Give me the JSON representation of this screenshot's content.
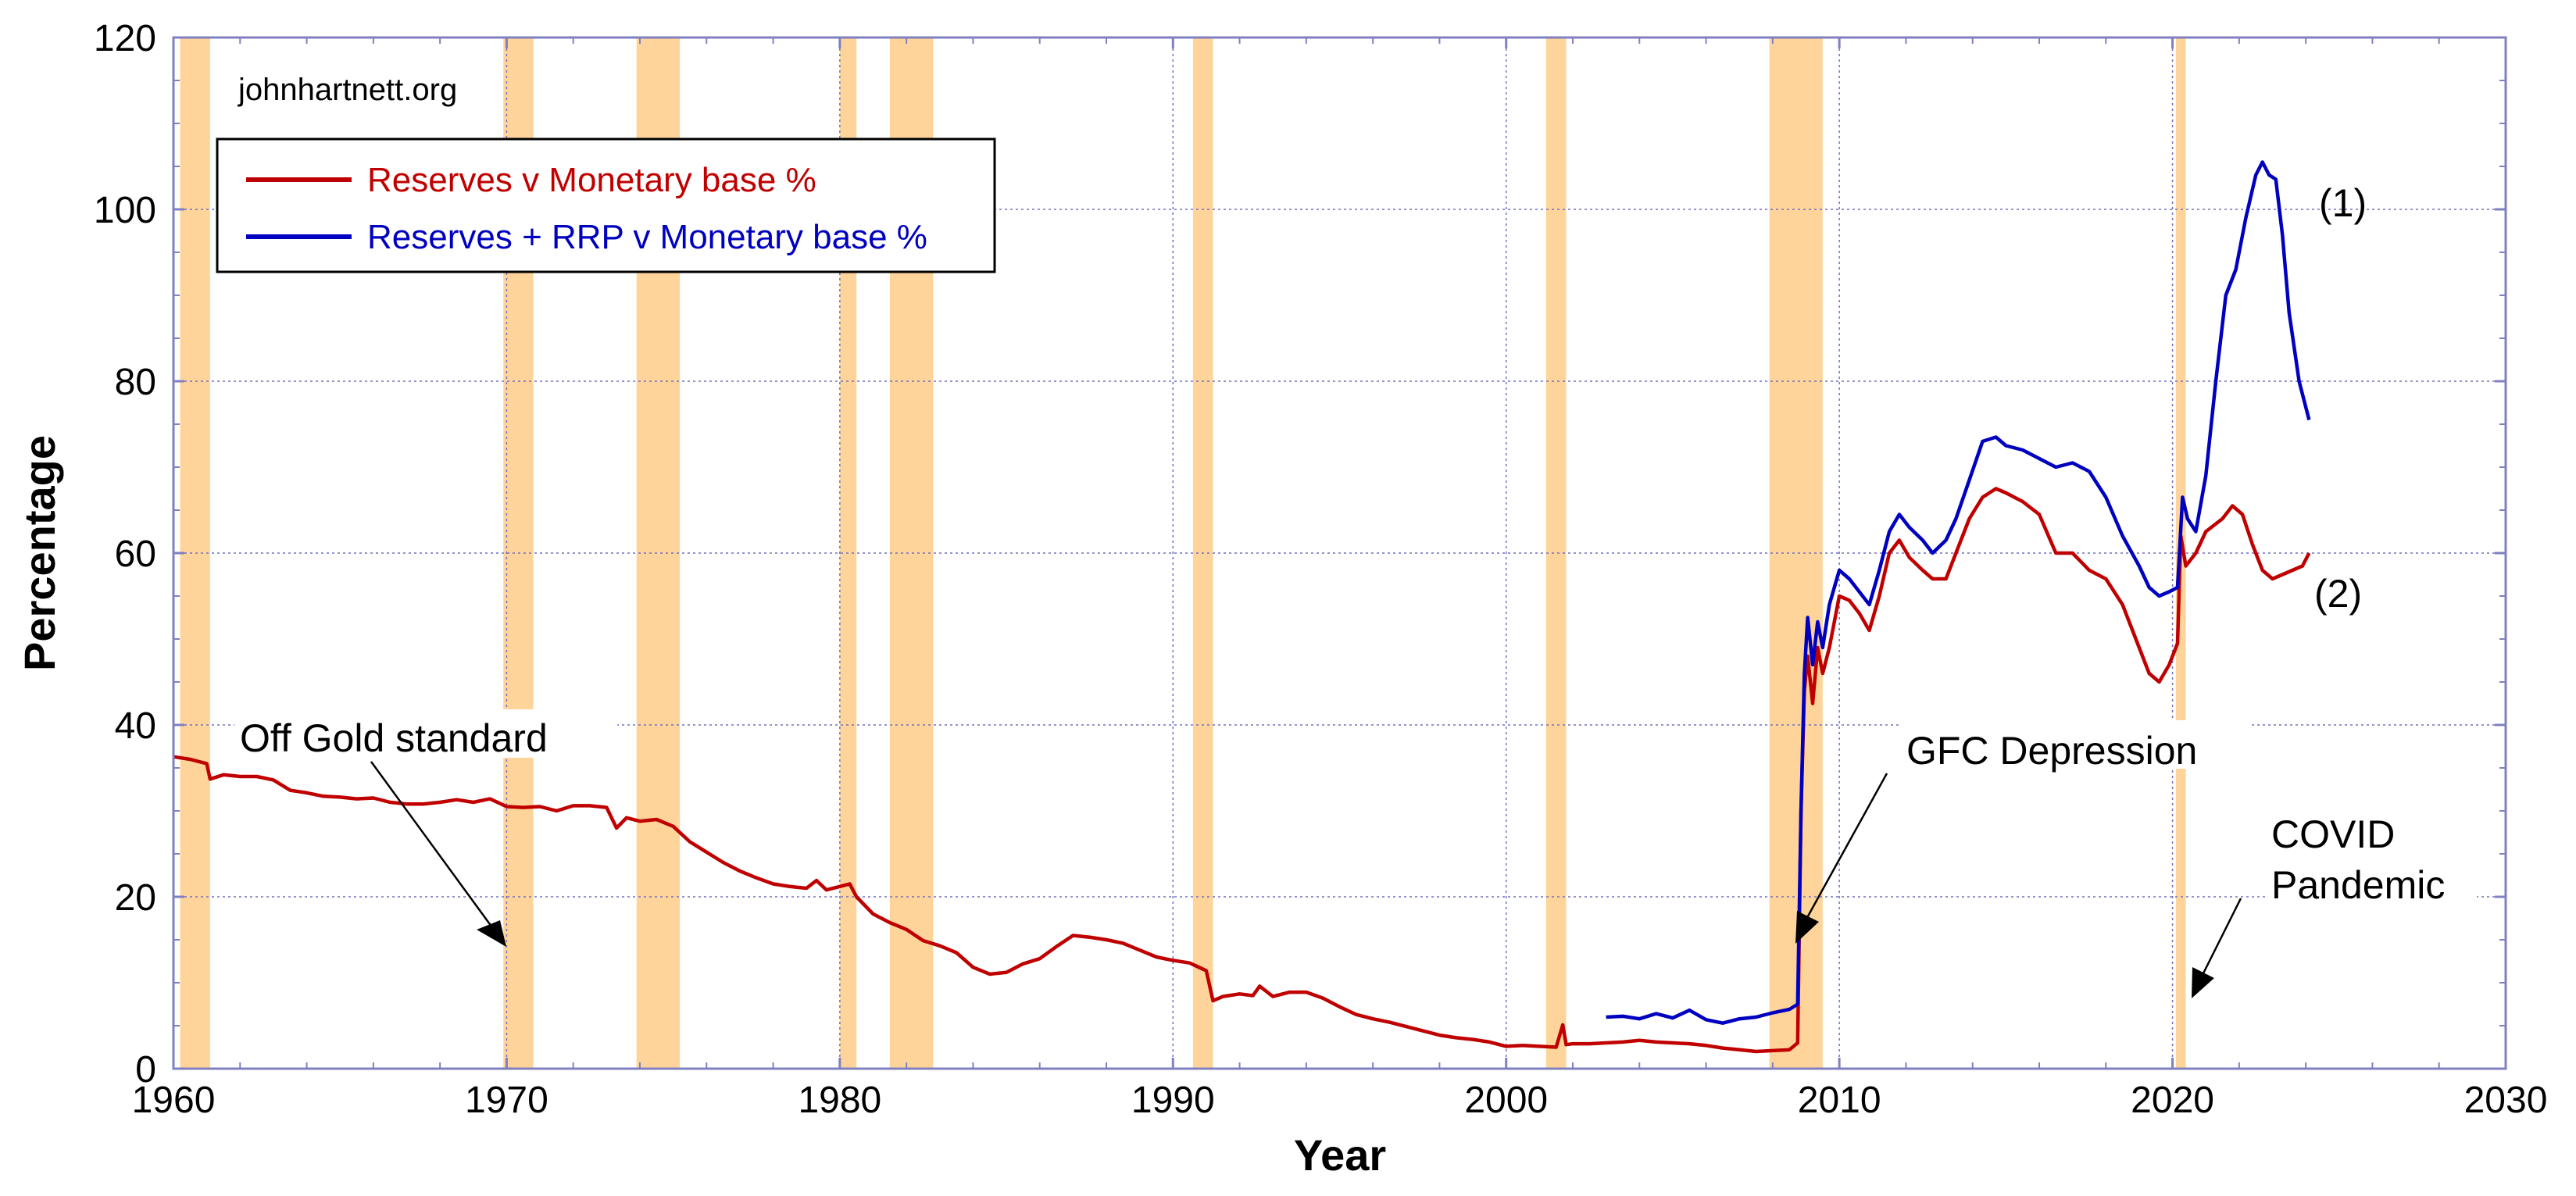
{
  "chart_data": {
    "type": "line",
    "xlabel": "Year",
    "ylabel": "Percentage",
    "xlim": [
      1960,
      2030
    ],
    "ylim": [
      0,
      120
    ],
    "xticks": [
      1960,
      1970,
      1980,
      1990,
      2000,
      2010,
      2020,
      2030
    ],
    "yticks": [
      0,
      20,
      40,
      60,
      80,
      100,
      120
    ],
    "grid": true,
    "legend_placement": "top-left",
    "watermark": "johnhartnett.org",
    "recession_color": "#FFD49A",
    "recessions": [
      [
        1960.2,
        1961.1
      ],
      [
        1969.9,
        1970.8
      ],
      [
        1973.9,
        1975.2
      ],
      [
        1980.0,
        1980.5
      ],
      [
        1981.5,
        1982.8
      ],
      [
        1990.6,
        1991.2
      ],
      [
        2001.2,
        2001.8
      ],
      [
        2007.9,
        2009.5
      ],
      [
        2020.1,
        2020.4
      ]
    ],
    "series": [
      {
        "name": "Reserves v Monetary base %",
        "color": "#C00000",
        "points": [
          [
            1960.0,
            36.3
          ],
          [
            1960.5,
            36.0
          ],
          [
            1961.0,
            35.5
          ],
          [
            1961.1,
            33.7
          ],
          [
            1961.5,
            34.2
          ],
          [
            1962.0,
            34.0
          ],
          [
            1962.5,
            34.0
          ],
          [
            1963.0,
            33.6
          ],
          [
            1963.5,
            32.4
          ],
          [
            1964.0,
            32.1
          ],
          [
            1964.5,
            31.7
          ],
          [
            1965.0,
            31.6
          ],
          [
            1965.5,
            31.4
          ],
          [
            1966.0,
            31.5
          ],
          [
            1966.5,
            31.0
          ],
          [
            1967.0,
            30.8
          ],
          [
            1967.5,
            30.8
          ],
          [
            1968.0,
            31.0
          ],
          [
            1968.5,
            31.3
          ],
          [
            1969.0,
            31.0
          ],
          [
            1969.5,
            31.4
          ],
          [
            1970.0,
            30.5
          ],
          [
            1970.5,
            30.4
          ],
          [
            1971.0,
            30.5
          ],
          [
            1971.5,
            30.0
          ],
          [
            1972.0,
            30.6
          ],
          [
            1972.5,
            30.6
          ],
          [
            1973.0,
            30.4
          ],
          [
            1973.3,
            28.0
          ],
          [
            1973.6,
            29.2
          ],
          [
            1974.0,
            28.8
          ],
          [
            1974.5,
            29.0
          ],
          [
            1975.0,
            28.2
          ],
          [
            1975.5,
            26.4
          ],
          [
            1976.0,
            25.2
          ],
          [
            1976.5,
            24.0
          ],
          [
            1977.0,
            23.0
          ],
          [
            1977.5,
            22.2
          ],
          [
            1978.0,
            21.5
          ],
          [
            1978.5,
            21.2
          ],
          [
            1979.0,
            21.0
          ],
          [
            1979.3,
            21.9
          ],
          [
            1979.6,
            20.8
          ],
          [
            1980.0,
            21.2
          ],
          [
            1980.3,
            21.5
          ],
          [
            1980.5,
            20.0
          ],
          [
            1981.0,
            18.0
          ],
          [
            1981.5,
            17.0
          ],
          [
            1982.0,
            16.2
          ],
          [
            1982.5,
            14.9
          ],
          [
            1983.0,
            14.3
          ],
          [
            1983.5,
            13.5
          ],
          [
            1984.0,
            11.8
          ],
          [
            1984.5,
            11.0
          ],
          [
            1985.0,
            11.2
          ],
          [
            1985.5,
            12.2
          ],
          [
            1986.0,
            12.8
          ],
          [
            1986.5,
            14.2
          ],
          [
            1987.0,
            15.5
          ],
          [
            1987.5,
            15.3
          ],
          [
            1988.0,
            15.0
          ],
          [
            1988.5,
            14.6
          ],
          [
            1989.0,
            13.8
          ],
          [
            1989.5,
            13.0
          ],
          [
            1990.0,
            12.6
          ],
          [
            1990.5,
            12.3
          ],
          [
            1991.0,
            11.4
          ],
          [
            1991.2,
            7.9
          ],
          [
            1991.5,
            8.4
          ],
          [
            1992.0,
            8.7
          ],
          [
            1992.4,
            8.5
          ],
          [
            1992.6,
            9.6
          ],
          [
            1993.0,
            8.4
          ],
          [
            1993.5,
            8.9
          ],
          [
            1994.0,
            8.9
          ],
          [
            1994.5,
            8.2
          ],
          [
            1995.0,
            7.2
          ],
          [
            1995.5,
            6.3
          ],
          [
            1996.0,
            5.8
          ],
          [
            1996.5,
            5.4
          ],
          [
            1997.0,
            4.9
          ],
          [
            1997.5,
            4.4
          ],
          [
            1998.0,
            3.9
          ],
          [
            1998.5,
            3.6
          ],
          [
            1999.0,
            3.4
          ],
          [
            1999.5,
            3.1
          ],
          [
            2000.0,
            2.6
          ],
          [
            2000.5,
            2.7
          ],
          [
            2001.0,
            2.6
          ],
          [
            2001.5,
            2.5
          ],
          [
            2001.7,
            5.1
          ],
          [
            2001.8,
            2.8
          ],
          [
            2002.0,
            2.9
          ],
          [
            2002.5,
            2.9
          ],
          [
            2003.0,
            3.0
          ],
          [
            2003.5,
            3.1
          ],
          [
            2004.0,
            3.3
          ],
          [
            2004.5,
            3.1
          ],
          [
            2005.0,
            3.0
          ],
          [
            2005.5,
            2.9
          ],
          [
            2006.0,
            2.7
          ],
          [
            2006.5,
            2.4
          ],
          [
            2007.0,
            2.2
          ],
          [
            2007.5,
            2.0
          ],
          [
            2008.0,
            2.1
          ],
          [
            2008.5,
            2.2
          ],
          [
            2008.75,
            3.0
          ],
          [
            2008.85,
            30.0
          ],
          [
            2008.95,
            44.0
          ],
          [
            2009.05,
            48.0
          ],
          [
            2009.2,
            42.5
          ],
          [
            2009.35,
            49.0
          ],
          [
            2009.5,
            46.0
          ],
          [
            2009.7,
            49.0
          ],
          [
            2010.0,
            55.0
          ],
          [
            2010.3,
            54.5
          ],
          [
            2010.6,
            53.0
          ],
          [
            2010.9,
            51.0
          ],
          [
            2011.2,
            55.0
          ],
          [
            2011.5,
            60.0
          ],
          [
            2011.8,
            61.5
          ],
          [
            2012.1,
            59.5
          ],
          [
            2012.5,
            58.0
          ],
          [
            2012.8,
            57.0
          ],
          [
            2013.2,
            57.0
          ],
          [
            2013.5,
            60.0
          ],
          [
            2013.9,
            64.0
          ],
          [
            2014.3,
            66.5
          ],
          [
            2014.7,
            67.5
          ],
          [
            2015.0,
            67.0
          ],
          [
            2015.5,
            66.0
          ],
          [
            2016.0,
            64.5
          ],
          [
            2016.5,
            60.0
          ],
          [
            2017.0,
            60.0
          ],
          [
            2017.5,
            58.0
          ],
          [
            2018.0,
            57.0
          ],
          [
            2018.5,
            54.0
          ],
          [
            2019.0,
            49.0
          ],
          [
            2019.3,
            46.0
          ],
          [
            2019.6,
            45.0
          ],
          [
            2019.9,
            47.0
          ],
          [
            2020.15,
            49.5
          ],
          [
            2020.25,
            62.0
          ],
          [
            2020.4,
            58.5
          ],
          [
            2020.7,
            60.0
          ],
          [
            2021.0,
            62.5
          ],
          [
            2021.5,
            64.0
          ],
          [
            2021.8,
            65.5
          ],
          [
            2022.1,
            64.5
          ],
          [
            2022.4,
            61.0
          ],
          [
            2022.7,
            58.0
          ],
          [
            2023.0,
            57.0
          ],
          [
            2023.3,
            57.5
          ],
          [
            2023.6,
            58.0
          ],
          [
            2023.9,
            58.5
          ],
          [
            2024.1,
            60.0
          ]
        ]
      },
      {
        "name": "Reserves + RRP v Monetary base %",
        "color": "#0000C0",
        "points": [
          [
            2003.0,
            6.0
          ],
          [
            2003.5,
            6.1
          ],
          [
            2004.0,
            5.8
          ],
          [
            2004.5,
            6.4
          ],
          [
            2005.0,
            5.9
          ],
          [
            2005.5,
            6.8
          ],
          [
            2006.0,
            5.7
          ],
          [
            2006.5,
            5.3
          ],
          [
            2007.0,
            5.8
          ],
          [
            2007.5,
            6.0
          ],
          [
            2008.0,
            6.5
          ],
          [
            2008.5,
            6.9
          ],
          [
            2008.75,
            7.5
          ],
          [
            2008.85,
            30.0
          ],
          [
            2008.95,
            46.0
          ],
          [
            2009.05,
            52.5
          ],
          [
            2009.2,
            47.0
          ],
          [
            2009.35,
            52.0
          ],
          [
            2009.5,
            49.0
          ],
          [
            2009.7,
            54.0
          ],
          [
            2010.0,
            58.0
          ],
          [
            2010.3,
            57.0
          ],
          [
            2010.6,
            55.5
          ],
          [
            2010.9,
            54.0
          ],
          [
            2011.2,
            58.0
          ],
          [
            2011.5,
            62.5
          ],
          [
            2011.8,
            64.5
          ],
          [
            2012.1,
            63.0
          ],
          [
            2012.5,
            61.5
          ],
          [
            2012.8,
            60.0
          ],
          [
            2013.2,
            61.5
          ],
          [
            2013.5,
            64.0
          ],
          [
            2013.9,
            68.5
          ],
          [
            2014.3,
            73.0
          ],
          [
            2014.7,
            73.5
          ],
          [
            2015.0,
            72.5
          ],
          [
            2015.5,
            72.0
          ],
          [
            2016.0,
            71.0
          ],
          [
            2016.5,
            70.0
          ],
          [
            2017.0,
            70.5
          ],
          [
            2017.5,
            69.5
          ],
          [
            2018.0,
            66.5
          ],
          [
            2018.5,
            62.0
          ],
          [
            2019.0,
            58.5
          ],
          [
            2019.3,
            56.0
          ],
          [
            2019.6,
            55.0
          ],
          [
            2019.9,
            55.5
          ],
          [
            2020.15,
            56.0
          ],
          [
            2020.3,
            66.5
          ],
          [
            2020.45,
            64.0
          ],
          [
            2020.7,
            62.5
          ],
          [
            2021.0,
            69.0
          ],
          [
            2021.3,
            80.0
          ],
          [
            2021.6,
            90.0
          ],
          [
            2021.9,
            93.0
          ],
          [
            2022.2,
            99.0
          ],
          [
            2022.5,
            104.0
          ],
          [
            2022.7,
            105.5
          ],
          [
            2022.9,
            104.0
          ],
          [
            2023.1,
            103.5
          ],
          [
            2023.3,
            97.0
          ],
          [
            2023.5,
            88.0
          ],
          [
            2023.8,
            80.0
          ],
          [
            2024.1,
            75.5
          ]
        ]
      }
    ],
    "annotations": [
      {
        "text": "Off Gold standard",
        "arrow_to": [
          1970.0,
          13.2
        ]
      },
      {
        "text": "GFC Depression",
        "arrow_to": [
          2008.9,
          14.2
        ]
      },
      {
        "text": "COVID",
        "arrow_to": [
          2020.3,
          8.2
        ]
      },
      {
        "text": "Pandemic"
      },
      {
        "text": "(1)"
      },
      {
        "text": "(2)"
      }
    ]
  }
}
